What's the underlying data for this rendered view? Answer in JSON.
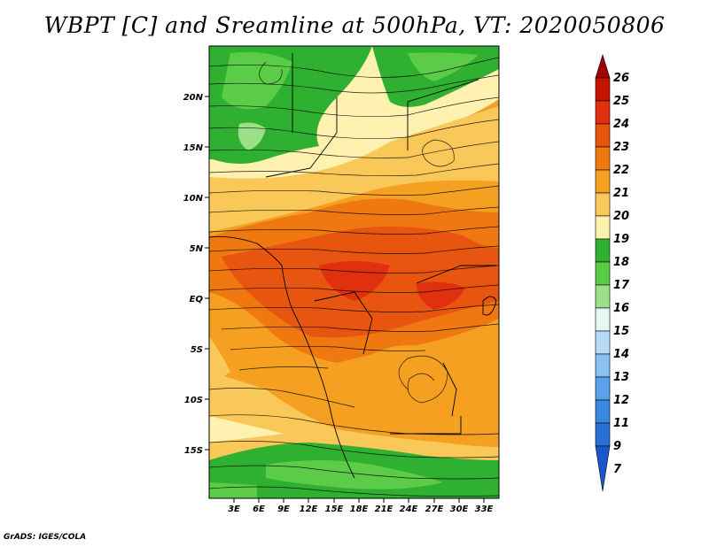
{
  "title": "WBPT [C] and Sreamline at 500hPa, VT: 2020050806",
  "credit": "GrADS: IGES/COLA",
  "axes": {
    "lat_ticks": [
      "20N",
      "15N",
      "10N",
      "5N",
      "EQ",
      "5S",
      "10S",
      "15S"
    ],
    "lon_ticks": [
      "3E",
      "6E",
      "9E",
      "12E",
      "15E",
      "18E",
      "21E",
      "24E",
      "27E",
      "30E",
      "33E"
    ]
  },
  "colorbar": {
    "labels": [
      "26",
      "25",
      "24",
      "23",
      "22",
      "21",
      "20",
      "19",
      "18",
      "17",
      "16",
      "15",
      "14",
      "13",
      "12",
      "11",
      "9",
      "7"
    ],
    "colors": {
      "c26": "#a00000",
      "c25": "#c41400",
      "c24": "#e03010",
      "c23": "#e85510",
      "c22": "#f07810",
      "c21": "#f5a020",
      "c20": "#fac858",
      "c19": "#fff2b0",
      "c18": "#30b030",
      "c17": "#5ccc48",
      "c16": "#9ae088",
      "c15": "#e4f7f2",
      "c14": "#b4daf8",
      "c13": "#88c0f2",
      "c12": "#5aa2ea",
      "c11": "#3c88e2",
      "c9": "#2a70d8",
      "c7": "#1858cc"
    }
  }
}
